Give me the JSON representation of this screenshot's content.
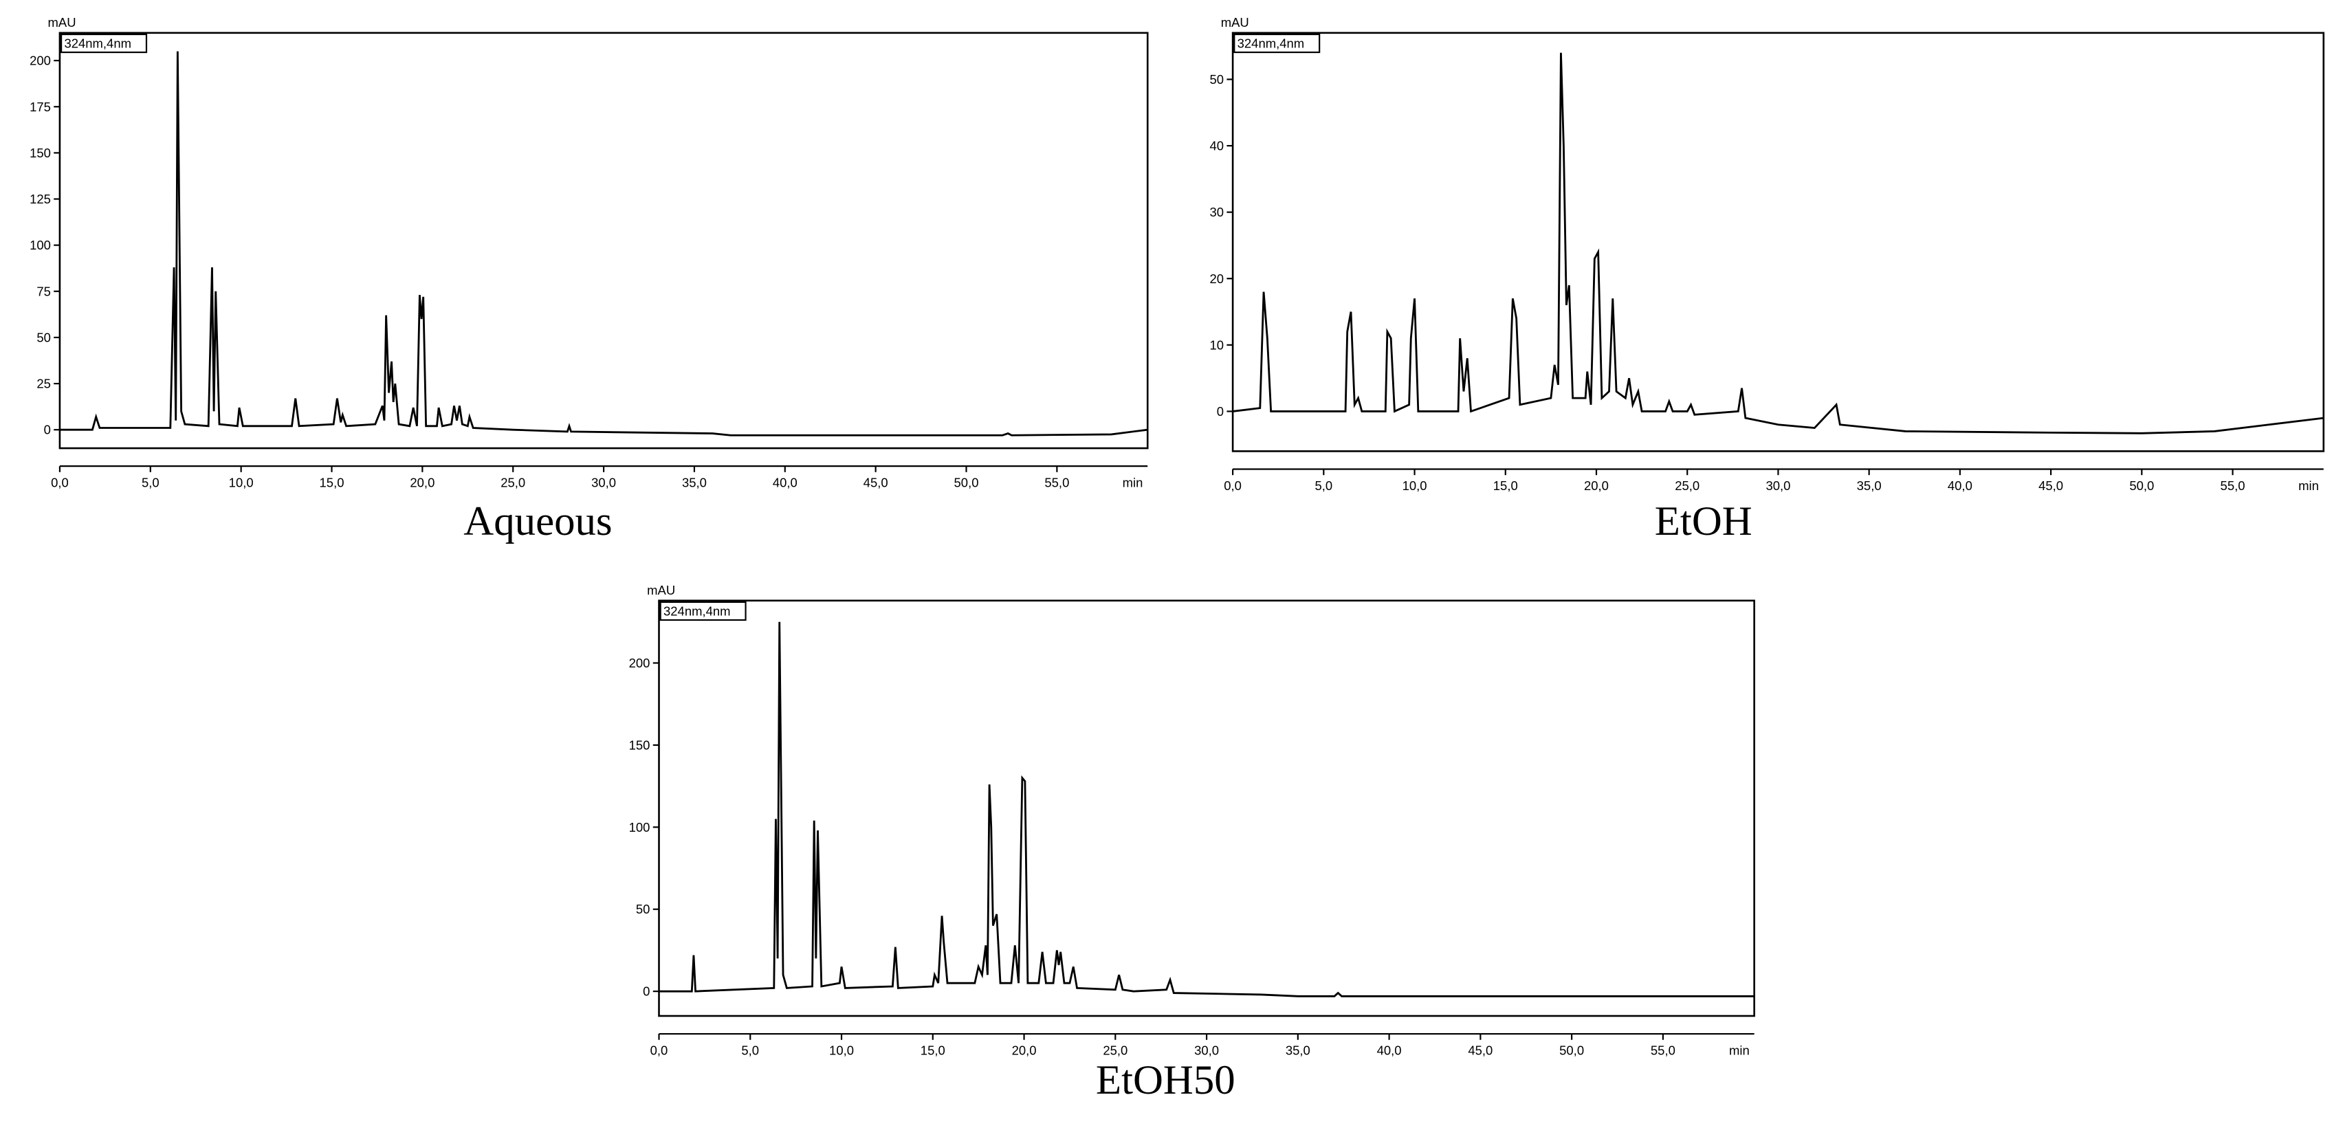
{
  "chart_data": [
    {
      "type": "line",
      "title": "Aqueous",
      "ylabel": "mAU",
      "xlabel": "min",
      "xlim": [
        0,
        60
      ],
      "ylim": [
        -10,
        215
      ],
      "xticks": [
        {
          "value": 0,
          "label": "0,0"
        },
        {
          "value": 5,
          "label": "5,0"
        },
        {
          "value": 10,
          "label": "10,0"
        },
        {
          "value": 15,
          "label": "15,0"
        },
        {
          "value": 20,
          "label": "20,0"
        },
        {
          "value": 25,
          "label": "25,0"
        },
        {
          "value": 30,
          "label": "30,0"
        },
        {
          "value": 35,
          "label": "35,0"
        },
        {
          "value": 40,
          "label": "40,0"
        },
        {
          "value": 45,
          "label": "45,0"
        },
        {
          "value": 50,
          "label": "50,0"
        },
        {
          "value": 55,
          "label": "55,0"
        }
      ],
      "yticks": [
        0,
        25,
        50,
        75,
        100,
        125,
        150,
        175,
        200
      ],
      "grid": false,
      "x": [
        0,
        1.8,
        2.0,
        2.2,
        6.1,
        6.3,
        6.4,
        6.5,
        6.7,
        6.9,
        8.2,
        8.4,
        8.5,
        8.6,
        8.8,
        9.8,
        9.9,
        10.1,
        12.8,
        13.0,
        13.2,
        15.1,
        15.3,
        15.5,
        15.6,
        15.8,
        17.4,
        17.6,
        17.8,
        17.9,
        18.0,
        18.15,
        18.3,
        18.4,
        18.5,
        18.7,
        19.3,
        19.5,
        19.7,
        19.85,
        19.95,
        20.05,
        20.2,
        20.8,
        20.9,
        21.1,
        21.6,
        21.75,
        21.9,
        22.05,
        22.2,
        22.5,
        22.6,
        22.8,
        25,
        28,
        28.1,
        28.2,
        36,
        37,
        52,
        52.3,
        52.5,
        58,
        60
      ],
      "series": [
        {
          "name": "324nm,4nm",
          "color": "#000000",
          "values": [
            0,
            0,
            7,
            1,
            1,
            88,
            5,
            205,
            10,
            3,
            2,
            88,
            10,
            75,
            3,
            2,
            12,
            2,
            2,
            17,
            2,
            3,
            17,
            4,
            8,
            2,
            3,
            8,
            13,
            5,
            62,
            20,
            37,
            15,
            25,
            3,
            2,
            12,
            2,
            73,
            60,
            72,
            2,
            2,
            12,
            2,
            3,
            13,
            5,
            13,
            3,
            2,
            7,
            1,
            0,
            -1,
            2,
            -1,
            -2,
            -3,
            -3,
            -2,
            -3,
            -2.5,
            0
          ]
        }
      ]
    },
    {
      "type": "line",
      "title": "EtOH",
      "ylabel": "mAU",
      "xlabel": "min",
      "xlim": [
        0,
        60
      ],
      "ylim": [
        -6,
        57
      ],
      "xticks": [
        {
          "value": 0,
          "label": "0,0"
        },
        {
          "value": 5,
          "label": "5,0"
        },
        {
          "value": 10,
          "label": "10,0"
        },
        {
          "value": 15,
          "label": "15,0"
        },
        {
          "value": 20,
          "label": "20,0"
        },
        {
          "value": 25,
          "label": "25,0"
        },
        {
          "value": 30,
          "label": "30,0"
        },
        {
          "value": 35,
          "label": "35,0"
        },
        {
          "value": 40,
          "label": "40,0"
        },
        {
          "value": 45,
          "label": "45,0"
        },
        {
          "value": 50,
          "label": "50,0"
        },
        {
          "value": 55,
          "label": "55,0"
        }
      ],
      "yticks": [
        0,
        10,
        20,
        30,
        40,
        50
      ],
      "grid": false,
      "x": [
        0,
        1.5,
        1.7,
        1.9,
        2.1,
        6.2,
        6.3,
        6.5,
        6.7,
        6.9,
        7.1,
        8.4,
        8.5,
        8.7,
        8.9,
        9.7,
        9.8,
        10.0,
        10.2,
        12.4,
        12.5,
        12.7,
        12.9,
        13.1,
        15.2,
        15.4,
        15.6,
        15.8,
        17.5,
        17.7,
        17.9,
        18.05,
        18.2,
        18.35,
        18.5,
        18.7,
        19.4,
        19.5,
        19.7,
        19.9,
        20.1,
        20.3,
        20.7,
        20.9,
        21.1,
        21.6,
        21.8,
        22.0,
        22.3,
        22.5,
        23.8,
        24,
        24.2,
        25,
        25.2,
        25.4,
        27.8,
        28,
        28.2,
        30,
        32,
        33.2,
        33.4,
        37,
        45,
        50,
        54,
        57,
        60
      ],
      "series": [
        {
          "name": "324nm,4nm",
          "color": "#000000",
          "values": [
            0,
            0.5,
            18,
            11,
            0,
            0,
            12,
            15,
            1,
            2,
            0,
            0,
            12,
            11,
            0,
            1,
            11,
            17,
            0,
            0,
            11,
            3,
            8,
            0,
            2,
            17,
            14,
            1,
            2,
            7,
            4,
            54,
            40,
            16,
            19,
            2,
            2,
            6,
            1,
            23,
            24,
            2,
            3,
            17,
            3,
            2,
            5,
            1,
            3,
            0,
            0,
            1.5,
            0,
            0,
            1,
            -0.5,
            0,
            3.5,
            -1,
            -2,
            -2.5,
            1,
            -2,
            -3,
            -3.2,
            -3.3,
            -3,
            -2,
            -1
          ]
        }
      ]
    },
    {
      "type": "line",
      "title": "EtOH50",
      "ylabel": "mAU",
      "xlabel": "min",
      "xlim": [
        0,
        60
      ],
      "ylim": [
        -15,
        238
      ],
      "xticks": [
        {
          "value": 0,
          "label": "0,0"
        },
        {
          "value": 5,
          "label": "5,0"
        },
        {
          "value": 10,
          "label": "10,0"
        },
        {
          "value": 15,
          "label": "15,0"
        },
        {
          "value": 20,
          "label": "20,0"
        },
        {
          "value": 25,
          "label": "25,0"
        },
        {
          "value": 30,
          "label": "30,0"
        },
        {
          "value": 35,
          "label": "35,0"
        },
        {
          "value": 40,
          "label": "40,0"
        },
        {
          "value": 45,
          "label": "45,0"
        },
        {
          "value": 50,
          "label": "50,0"
        },
        {
          "value": 55,
          "label": "55,0"
        }
      ],
      "yticks": [
        0,
        50,
        100,
        150,
        200
      ],
      "grid": false,
      "x": [
        0,
        1.8,
        1.9,
        2.0,
        6.3,
        6.4,
        6.5,
        6.6,
        6.8,
        7,
        8.4,
        8.5,
        8.6,
        8.7,
        8.9,
        9.9,
        10,
        10.2,
        12.8,
        12.95,
        13.1,
        15,
        15.1,
        15.3,
        15.5,
        15.6,
        15.8,
        17.3,
        17.5,
        17.7,
        17.9,
        18.0,
        18.1,
        18.2,
        18.3,
        18.5,
        18.7,
        19.3,
        19.5,
        19.7,
        19.9,
        20.05,
        20.2,
        20.8,
        21,
        21.2,
        21.6,
        21.8,
        21.9,
        22.0,
        22.2,
        22.5,
        22.7,
        22.9,
        25,
        25.2,
        25.4,
        26,
        27.8,
        28,
        28.2,
        33,
        35,
        37,
        37.2,
        37.4,
        56,
        60
      ],
      "series": [
        {
          "name": "324nm,4nm",
          "color": "#000000",
          "values": [
            0,
            0,
            22,
            0,
            2,
            105,
            20,
            225,
            10,
            2,
            3,
            104,
            20,
            98,
            3,
            5,
            15,
            2,
            3,
            27,
            2,
            3,
            10,
            5,
            46,
            30,
            5,
            5,
            15,
            10,
            28,
            10,
            126,
            100,
            40,
            47,
            5,
            5,
            28,
            5,
            130,
            128,
            5,
            5,
            24,
            5,
            5,
            25,
            16,
            24,
            5,
            5,
            15,
            2,
            1,
            10,
            1,
            0,
            1,
            7,
            -1,
            -2,
            -3,
            -3,
            -1,
            -3,
            -3,
            -3
          ]
        }
      ]
    }
  ]
}
